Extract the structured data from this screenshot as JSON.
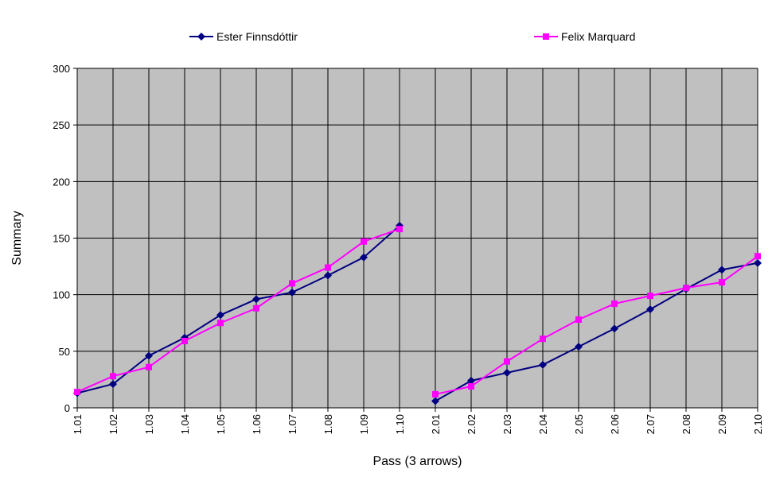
{
  "chart_data": {
    "type": "line",
    "title": "",
    "xlabel": "Pass (3 arrows)",
    "ylabel": "Summary",
    "ylim": [
      0,
      300
    ],
    "yticks": [
      0,
      50,
      100,
      150,
      200,
      250,
      300
    ],
    "grid": true,
    "legend_position": "top",
    "plot_background": "#c0c0c0",
    "categories": [
      "1.01",
      "1.02",
      "1.03",
      "1.04",
      "1.05",
      "1.06",
      "1.07",
      "1.08",
      "1.09",
      "1.10",
      "2.01",
      "2.02",
      "2.03",
      "2.04",
      "2.05",
      "2.06",
      "2.07",
      "2.08",
      "2.09",
      "2.10"
    ],
    "series": [
      {
        "name": "Ester Finnsdóttir",
        "color": "#000080",
        "marker": "diamond",
        "values": [
          13,
          21,
          46,
          62,
          82,
          96,
          102,
          117,
          133,
          161,
          6,
          24,
          31,
          38,
          54,
          70,
          87,
          105,
          122,
          128
        ]
      },
      {
        "name": "Felix Marquard",
        "color": "#ff00ff",
        "marker": "square",
        "values": [
          14,
          28,
          36,
          59,
          75,
          88,
          110,
          124,
          147,
          158,
          12,
          19,
          41,
          61,
          78,
          92,
          99,
          106,
          111,
          134
        ]
      }
    ]
  }
}
